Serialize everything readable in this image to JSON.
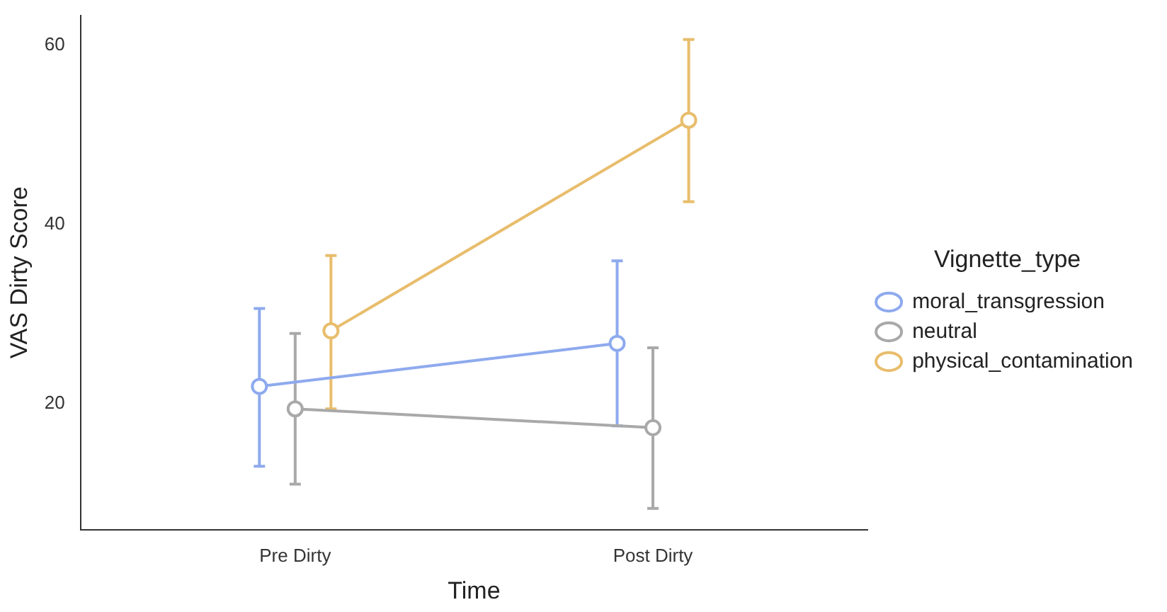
{
  "chart_data": {
    "type": "line",
    "xlabel": "Time",
    "ylabel": "VAS Dirty Score",
    "legend_title": "Vignette_type",
    "legend": "right",
    "grid": false,
    "marker": "circle",
    "categories": [
      "Pre Dirty",
      "Post Dirty"
    ],
    "ylim": [
      5.9,
      63.3
    ],
    "yticks": [
      20,
      40,
      60
    ],
    "series": [
      {
        "name": "moral_transgression",
        "color": "#8eaaee",
        "values": [
          21.9,
          26.7
        ],
        "errors": [
          [
            13.0,
            30.6
          ],
          [
            17.5,
            35.9
          ]
        ]
      },
      {
        "name": "neutral",
        "color": "#a9a9a9",
        "values": [
          19.4,
          17.3
        ],
        "errors": [
          [
            11.0,
            27.8
          ],
          [
            8.3,
            26.2
          ]
        ]
      },
      {
        "name": "physical_contamination",
        "color": "#e8bd6c",
        "values": [
          28.1,
          51.6
        ],
        "errors": [
          [
            19.4,
            36.5
          ],
          [
            42.5,
            60.6
          ]
        ]
      }
    ]
  }
}
